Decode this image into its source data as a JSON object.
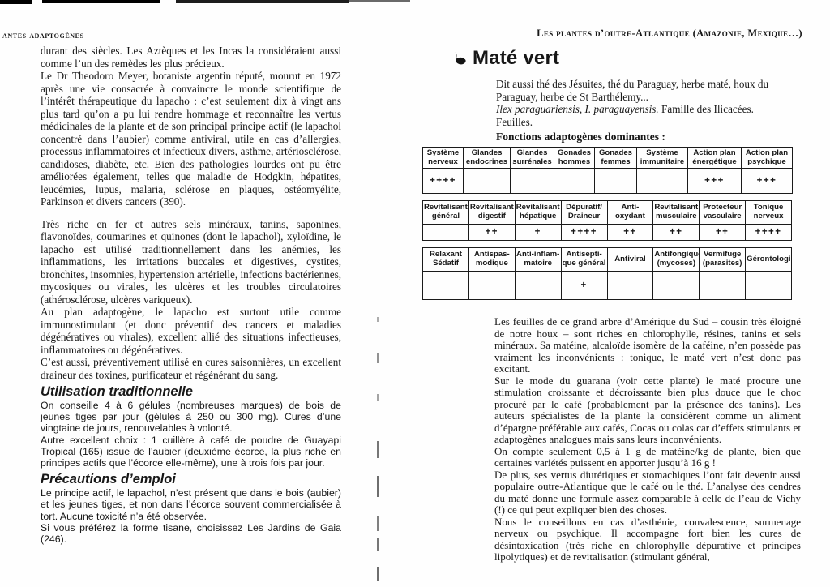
{
  "theme": {
    "paper": "#fefefe",
    "ink": "#171717"
  },
  "left_page": {
    "header": "antes adaptogènes",
    "body": {
      "p1": "durant des siècles. Les Aztèques et les Incas la considéraient aussi comme l’un des remèdes les plus précieux.",
      "p2": "Le Dr Theodoro Meyer, botaniste argentin réputé, mourut en 1972 après une vie consacrée à convaincre le monde scientifique de l’intérêt thérapeutique du lapacho : c’est seulement dix à vingt ans plus tard qu’on a pu lui rendre hommage et reconnaître les vertus médicinales de la plante et de son principal principe actif (le lapachol concentré dans l’aubier) comme antiviral, utile en cas d’allergies, processus inflammatoires et infectieux divers, asthme, artériosclérose, candidoses, diabète, etc. Bien des pathologies lourdes ont pu être améliorées également, telles que maladie de Hodgkin, hépatites, leucémies, lupus, malaria, sclérose en plaques, ostéomyélite, Parkinson et divers cancers (390).",
      "p3": "Très riche en fer et autres sels minéraux, tanins, saponines, flavonoïdes, coumarines et quinones (dont le lapachol), xyloïdine, le lapacho est utilisé traditionnellement dans les anémies, les inflammations, les irritations buccales et digestives, cystites, bronchites, insomnies, hypertension artérielle, infections bactériennes, mycosiques ou virales, les ulcères et les troubles circulatoires (athérosclérose, ulcères variqueux).",
      "p4": "Au plan adaptogène, le lapacho est surtout utile comme immunostimulant (et donc préventif des cancers et maladies dégénératives ou virales), excellent allié des situations infectieuses, inflammatoires ou dégénératives.",
      "p5": "C’est aussi, préventivement utilisé en cures saisonnières, un excellent draineur des toxines, purificateur et régénérant du sang."
    },
    "section_usage": {
      "heading": "Utilisation traditionnelle",
      "p1": "On conseille 4 à 6 gélules (nombreuses marques) de bois de jeunes tiges par jour (gélules à 250 ou 300 mg). Cures d’une vingtaine de jours, renouvelables à volonté.",
      "p2": "Autre excellent choix : 1 cuillère à café de poudre de Guayapi Tropical (165) issue de l’aubier (deuxième écorce, la plus riche en principes actifs que l’écorce elle-même), une à trois fois par jour."
    },
    "section_precautions": {
      "heading": "Précautions d’emploi",
      "p1": "Le principe actif, le lapachol, n’est présent que dans le bois (aubier) et les jeunes tiges, et non dans l’écorce souvent commercialisée à tort. Aucune toxicité n’a été observée.",
      "p2": "Si vous préférez la forme tisane, choisissez Les Jardins de Gaia (246)."
    }
  },
  "right_page": {
    "header": "Les plantes d’outre-Atlantique (Amazonie, Mexique…)",
    "plant": {
      "title": "Maté vert",
      "icon": "leaf-icon",
      "aka": "Dit aussi thé des Jésuites, thé du Paraguay, herbe maté, houx du Paraguay, herbe de St Barthélemy...",
      "latin": "Ilex paraguariensis, I. paraguayensis.",
      "family": " Famille des Ilicacées.",
      "parts": "Feuilles."
    },
    "functions_title": "Fonctions adaptogènes dominantes :",
    "tables": [
      {
        "headers": [
          "Système nerveux",
          "Glandes endocrines",
          "Glandes surrénales",
          "Gonades hommes",
          "Gonades femmes",
          "Système immunitaire",
          "Action plan énergétique",
          "Action plan psychique"
        ],
        "values": [
          "++++",
          "",
          "",
          "",
          "",
          "",
          "+++",
          "+++"
        ]
      },
      {
        "headers": [
          "Revitalisant général",
          "Revitalisant digestif",
          "Revitalisant hépatique",
          "Dépuratif/ Draineur",
          "Anti- oxydant",
          "Revitalisant musculaire",
          "Protecteur vasculaire",
          "Tonique nerveux"
        ],
        "values": [
          "",
          "++",
          "+",
          "++++",
          "++",
          "++",
          "++",
          "++++"
        ]
      },
      {
        "headers": [
          "Relaxant Sédatif",
          "Antispas- modique",
          "Anti-inflam- matoire",
          "Antisepti- que général",
          "Antiviral",
          "Antifongique (mycoses)",
          "Vermifuge (parasites)",
          "Gérontologie"
        ],
        "values": [
          "",
          "",
          "",
          "+",
          "",
          "",
          "",
          ""
        ]
      }
    ],
    "body": {
      "p1": "Les feuilles de ce grand arbre d’Amérique du Sud – cousin très éloigné de notre houx – sont riches en chlorophylle, résines, tanins et sels minéraux. Sa matéine, alcaloïde isomère de la caféine, n’en possède pas vraiment les inconvénients : tonique, le maté vert n’est donc pas excitant.",
      "p2": "Sur le mode du guarana (voir cette plante) le maté procure une stimulation croissante et décroissante bien plus douce que le choc procuré par le café (probablement par la présence des tanins). Les auteurs spécialistes de la plante la considèrent comme un aliment d’épargne préférable aux cafés, Cocas ou colas car d’effets stimulants et adaptogènes analogues mais sans leurs inconvénients.",
      "p3": "On compte seulement 0,5 à 1 g de matéine/kg de plante, bien que certaines variétés puissent en apporter jusqu’à 16 g !",
      "p4": "De plus, ses vertus diurétiques et stomachiques l’ont fait devenir aussi populaire outre-Atlantique que le café ou le thé. L’analyse des cendres du maté donne une formule assez comparable à celle de l’eau de Vichy (!) ce qui peut expliquer bien des choses.",
      "p5": "Nous le conseillons en cas d’asthénie, convalescence, surmenage nerveux ou psychique. Il accompagne fort bien les cures de désintoxication (très riche en chlorophylle dépurative et principes lipolytiques) et de revitalisation (stimulant général,"
    }
  }
}
